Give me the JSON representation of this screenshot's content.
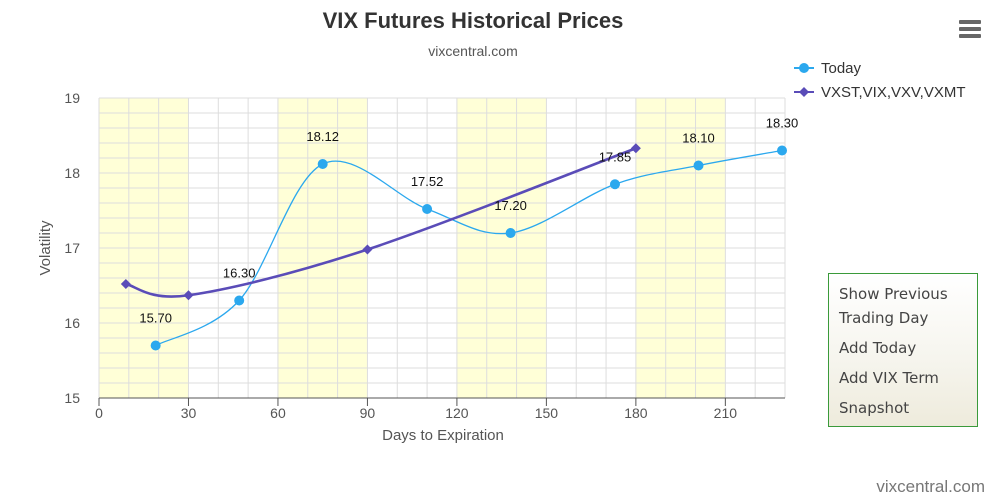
{
  "chart_data": {
    "type": "line",
    "title": "VIX Futures Historical Prices",
    "subtitle": "vixcentral.com",
    "xlabel": "Days to Expiration",
    "ylabel": "Volatility",
    "xlim": [
      0,
      230
    ],
    "ylim": [
      15,
      19
    ],
    "x_ticks": [
      0,
      30,
      60,
      90,
      120,
      150,
      180,
      210
    ],
    "y_ticks": [
      15,
      16,
      17,
      18,
      19
    ],
    "grid": true,
    "legend_position": "top-right",
    "shaded_bands": [
      [
        0,
        30
      ],
      [
        60,
        90
      ],
      [
        120,
        150
      ],
      [
        180,
        210
      ]
    ],
    "series": [
      {
        "name": "Today",
        "color": "#2ba8ee",
        "marker": "circle",
        "x": [
          19,
          47,
          75,
          110,
          138,
          173,
          201,
          229
        ],
        "values": [
          15.7,
          16.3,
          18.12,
          17.52,
          17.2,
          17.85,
          18.1,
          18.3
        ],
        "data_labels": [
          "15.70",
          "16.30",
          "18.12",
          "17.52",
          "17.20",
          "17.85",
          "18.10",
          "18.30"
        ]
      },
      {
        "name": "VXST,VIX,VXV,VXMT",
        "color": "#5a4cb8",
        "marker": "diamond",
        "x": [
          9,
          30,
          90,
          180
        ],
        "values": [
          16.52,
          16.37,
          16.98,
          18.33
        ]
      }
    ]
  },
  "colors": {
    "band": "#ffffd7",
    "grid": "#dddddd"
  },
  "menu": {
    "icon": "hamburger-menu-icon",
    "items": [
      "Show Previous",
      "Trading Day",
      "Add Today",
      "Add VIX Term",
      "Snapshot"
    ]
  },
  "credit": "vixcentral.com"
}
